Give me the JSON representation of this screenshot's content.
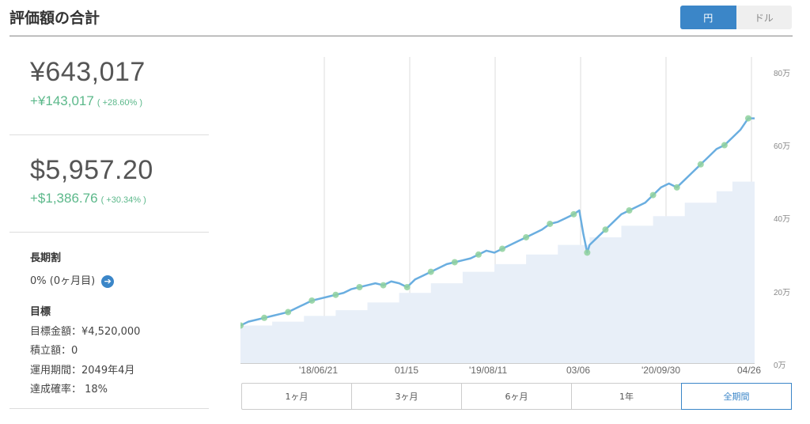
{
  "title": "評価額の合計",
  "currency_toggle": {
    "yen": "円",
    "dollar": "ドル",
    "selected": "yen"
  },
  "yen_summary": {
    "value": "¥643,017",
    "gain": "+¥143,017",
    "gain_pct": "( +28.60% )"
  },
  "usd_summary": {
    "value": "$5,957.20",
    "gain": "+$1,386.76",
    "gain_pct": "( +30.34% )"
  },
  "long_term": {
    "label": "長期割",
    "value": "0% (0ヶ月目)"
  },
  "goal": {
    "label": "目標",
    "amount": "目標金額：¥4,520,000",
    "deposit": "積立額：0",
    "period": "運用期間：2049年4月",
    "probability": "達成確率： 18%"
  },
  "colors": {
    "accent": "#3b86c8",
    "gain": "#5bb88a",
    "line": "#6aaee0",
    "area": "#e8eff8",
    "dot": "#8fd19e"
  },
  "chart_data": {
    "type": "line",
    "y_unit": "万",
    "ylim": [
      0,
      80
    ],
    "y_ticks": [
      "0万",
      "20万",
      "40万",
      "60万",
      "80万"
    ],
    "x_ticks": [
      "'18/06/21",
      "01/15",
      "'19/08/11",
      "03/06",
      "'20/09/30",
      "04/26"
    ],
    "series": [
      {
        "role": "valuation",
        "x": [
          0,
          10,
          20,
          30,
          40,
          50,
          60,
          70,
          80,
          90,
          100,
          110,
          120,
          130,
          140,
          150,
          160,
          170,
          180,
          190,
          200,
          210,
          220,
          230,
          240,
          250,
          260,
          270,
          280,
          290,
          300,
          310,
          320,
          330,
          340,
          350,
          360,
          370,
          380,
          390,
          400,
          410,
          420,
          427,
          432,
          437,
          440,
          450,
          460,
          470,
          480,
          490,
          500,
          510,
          520,
          530,
          540,
          550,
          560,
          570,
          580,
          590,
          600,
          610,
          620,
          630,
          640,
          648
        ],
        "y": [
          10,
          11,
          11.5,
          12,
          12.5,
          13,
          13.5,
          14.5,
          15.5,
          16.5,
          17,
          17.5,
          18,
          18.5,
          19.5,
          20,
          20.5,
          21,
          20.5,
          21.5,
          21,
          20,
          22,
          23,
          24,
          25,
          26,
          26.5,
          27,
          27.5,
          28.5,
          29.5,
          29,
          30,
          31,
          32,
          33,
          34,
          35,
          36.5,
          37,
          38,
          39,
          40,
          34,
          29,
          31,
          33,
          35,
          37,
          39,
          40,
          41,
          42,
          44,
          46,
          47,
          46,
          48,
          50,
          52,
          54,
          56,
          57,
          59,
          61,
          64,
          64
        ]
      },
      {
        "role": "invested",
        "x": [
          0,
          40,
          80,
          120,
          160,
          200,
          240,
          280,
          320,
          360,
          400,
          440,
          480,
          520,
          560,
          600,
          620,
          648
        ],
        "y": [
          10,
          11,
          12.5,
          14,
          16,
          18.5,
          21,
          24,
          26,
          28.5,
          31,
          33,
          36,
          38.5,
          42,
          45,
          47.5,
          50
        ]
      }
    ]
  },
  "periods": [
    {
      "label": "1ヶ月",
      "active": false
    },
    {
      "label": "3ヶ月",
      "active": false
    },
    {
      "label": "6ヶ月",
      "active": false
    },
    {
      "label": "1年",
      "active": false
    },
    {
      "label": "全期間",
      "active": true
    }
  ]
}
